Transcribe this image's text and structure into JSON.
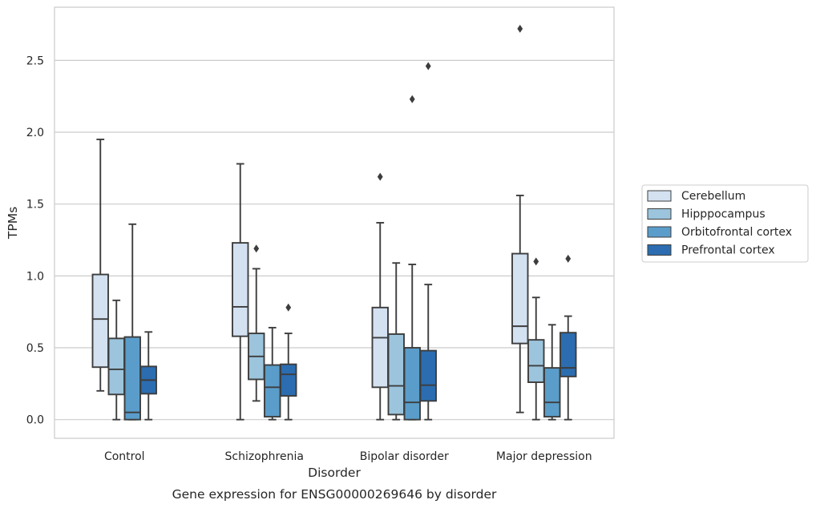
{
  "chart_data": {
    "type": "box",
    "categories": [
      "Control",
      "Schizophrenia",
      "Bipolar disorder",
      "Major depression"
    ],
    "xlabel": "Disorder",
    "ylabel": "TPMs",
    "caption": "Gene expression for ENSG00000269646 by disorder",
    "ylim": [
      -0.13,
      2.87
    ],
    "yticks": [
      "0.0",
      "0.5",
      "1.0",
      "1.5",
      "2.0",
      "2.5"
    ],
    "grid": "horizontal",
    "legend_position": "right",
    "series": [
      {
        "name": "Cerebellum",
        "color": "#d3e1f1",
        "boxes": [
          {
            "whislo": 0.2,
            "q1": 0.365,
            "med": 0.7,
            "q3": 1.01,
            "whishi": 1.95,
            "fliers": []
          },
          {
            "whislo": 0.0,
            "q1": 0.58,
            "med": 0.785,
            "q3": 1.23,
            "whishi": 1.78,
            "fliers": []
          },
          {
            "whislo": 0.0,
            "q1": 0.225,
            "med": 0.57,
            "q3": 0.78,
            "whishi": 1.37,
            "fliers": [
              1.69
            ]
          },
          {
            "whislo": 0.05,
            "q1": 0.53,
            "med": 0.65,
            "q3": 1.155,
            "whishi": 1.56,
            "fliers": [
              2.72
            ]
          }
        ]
      },
      {
        "name": "Hipppocampus",
        "color": "#9cc4dd",
        "boxes": [
          {
            "whislo": 0.0,
            "q1": 0.175,
            "med": 0.35,
            "q3": 0.565,
            "whishi": 0.83,
            "fliers": []
          },
          {
            "whislo": 0.13,
            "q1": 0.28,
            "med": 0.44,
            "q3": 0.6,
            "whishi": 1.05,
            "fliers": [
              1.19
            ]
          },
          {
            "whislo": 0.0,
            "q1": 0.035,
            "med": 0.235,
            "q3": 0.595,
            "whishi": 1.09,
            "fliers": []
          },
          {
            "whislo": 0.0,
            "q1": 0.26,
            "med": 0.375,
            "q3": 0.555,
            "whishi": 0.85,
            "fliers": [
              1.1
            ]
          }
        ]
      },
      {
        "name": "Orbitofrontal cortex",
        "color": "#5a9dca",
        "boxes": [
          {
            "whislo": 0.0,
            "q1": 0.0,
            "med": 0.05,
            "q3": 0.575,
            "whishi": 1.36,
            "fliers": []
          },
          {
            "whislo": 0.0,
            "q1": 0.02,
            "med": 0.225,
            "q3": 0.38,
            "whishi": 0.64,
            "fliers": []
          },
          {
            "whislo": 0.0,
            "q1": 0.0,
            "med": 0.12,
            "q3": 0.5,
            "whishi": 1.08,
            "fliers": [
              2.23
            ]
          },
          {
            "whislo": 0.0,
            "q1": 0.02,
            "med": 0.12,
            "q3": 0.36,
            "whishi": 0.66,
            "fliers": []
          }
        ]
      },
      {
        "name": "Prefrontal cortex",
        "color": "#2b6db0",
        "boxes": [
          {
            "whislo": 0.0,
            "q1": 0.18,
            "med": 0.275,
            "q3": 0.37,
            "whishi": 0.61,
            "fliers": []
          },
          {
            "whislo": 0.0,
            "q1": 0.165,
            "med": 0.315,
            "q3": 0.385,
            "whishi": 0.6,
            "fliers": [
              0.78
            ]
          },
          {
            "whislo": 0.0,
            "q1": 0.13,
            "med": 0.24,
            "q3": 0.48,
            "whishi": 0.94,
            "fliers": [
              2.46
            ]
          },
          {
            "whislo": 0.0,
            "q1": 0.3,
            "med": 0.36,
            "q3": 0.605,
            "whishi": 0.72,
            "fliers": [
              1.12
            ]
          }
        ]
      }
    ]
  }
}
